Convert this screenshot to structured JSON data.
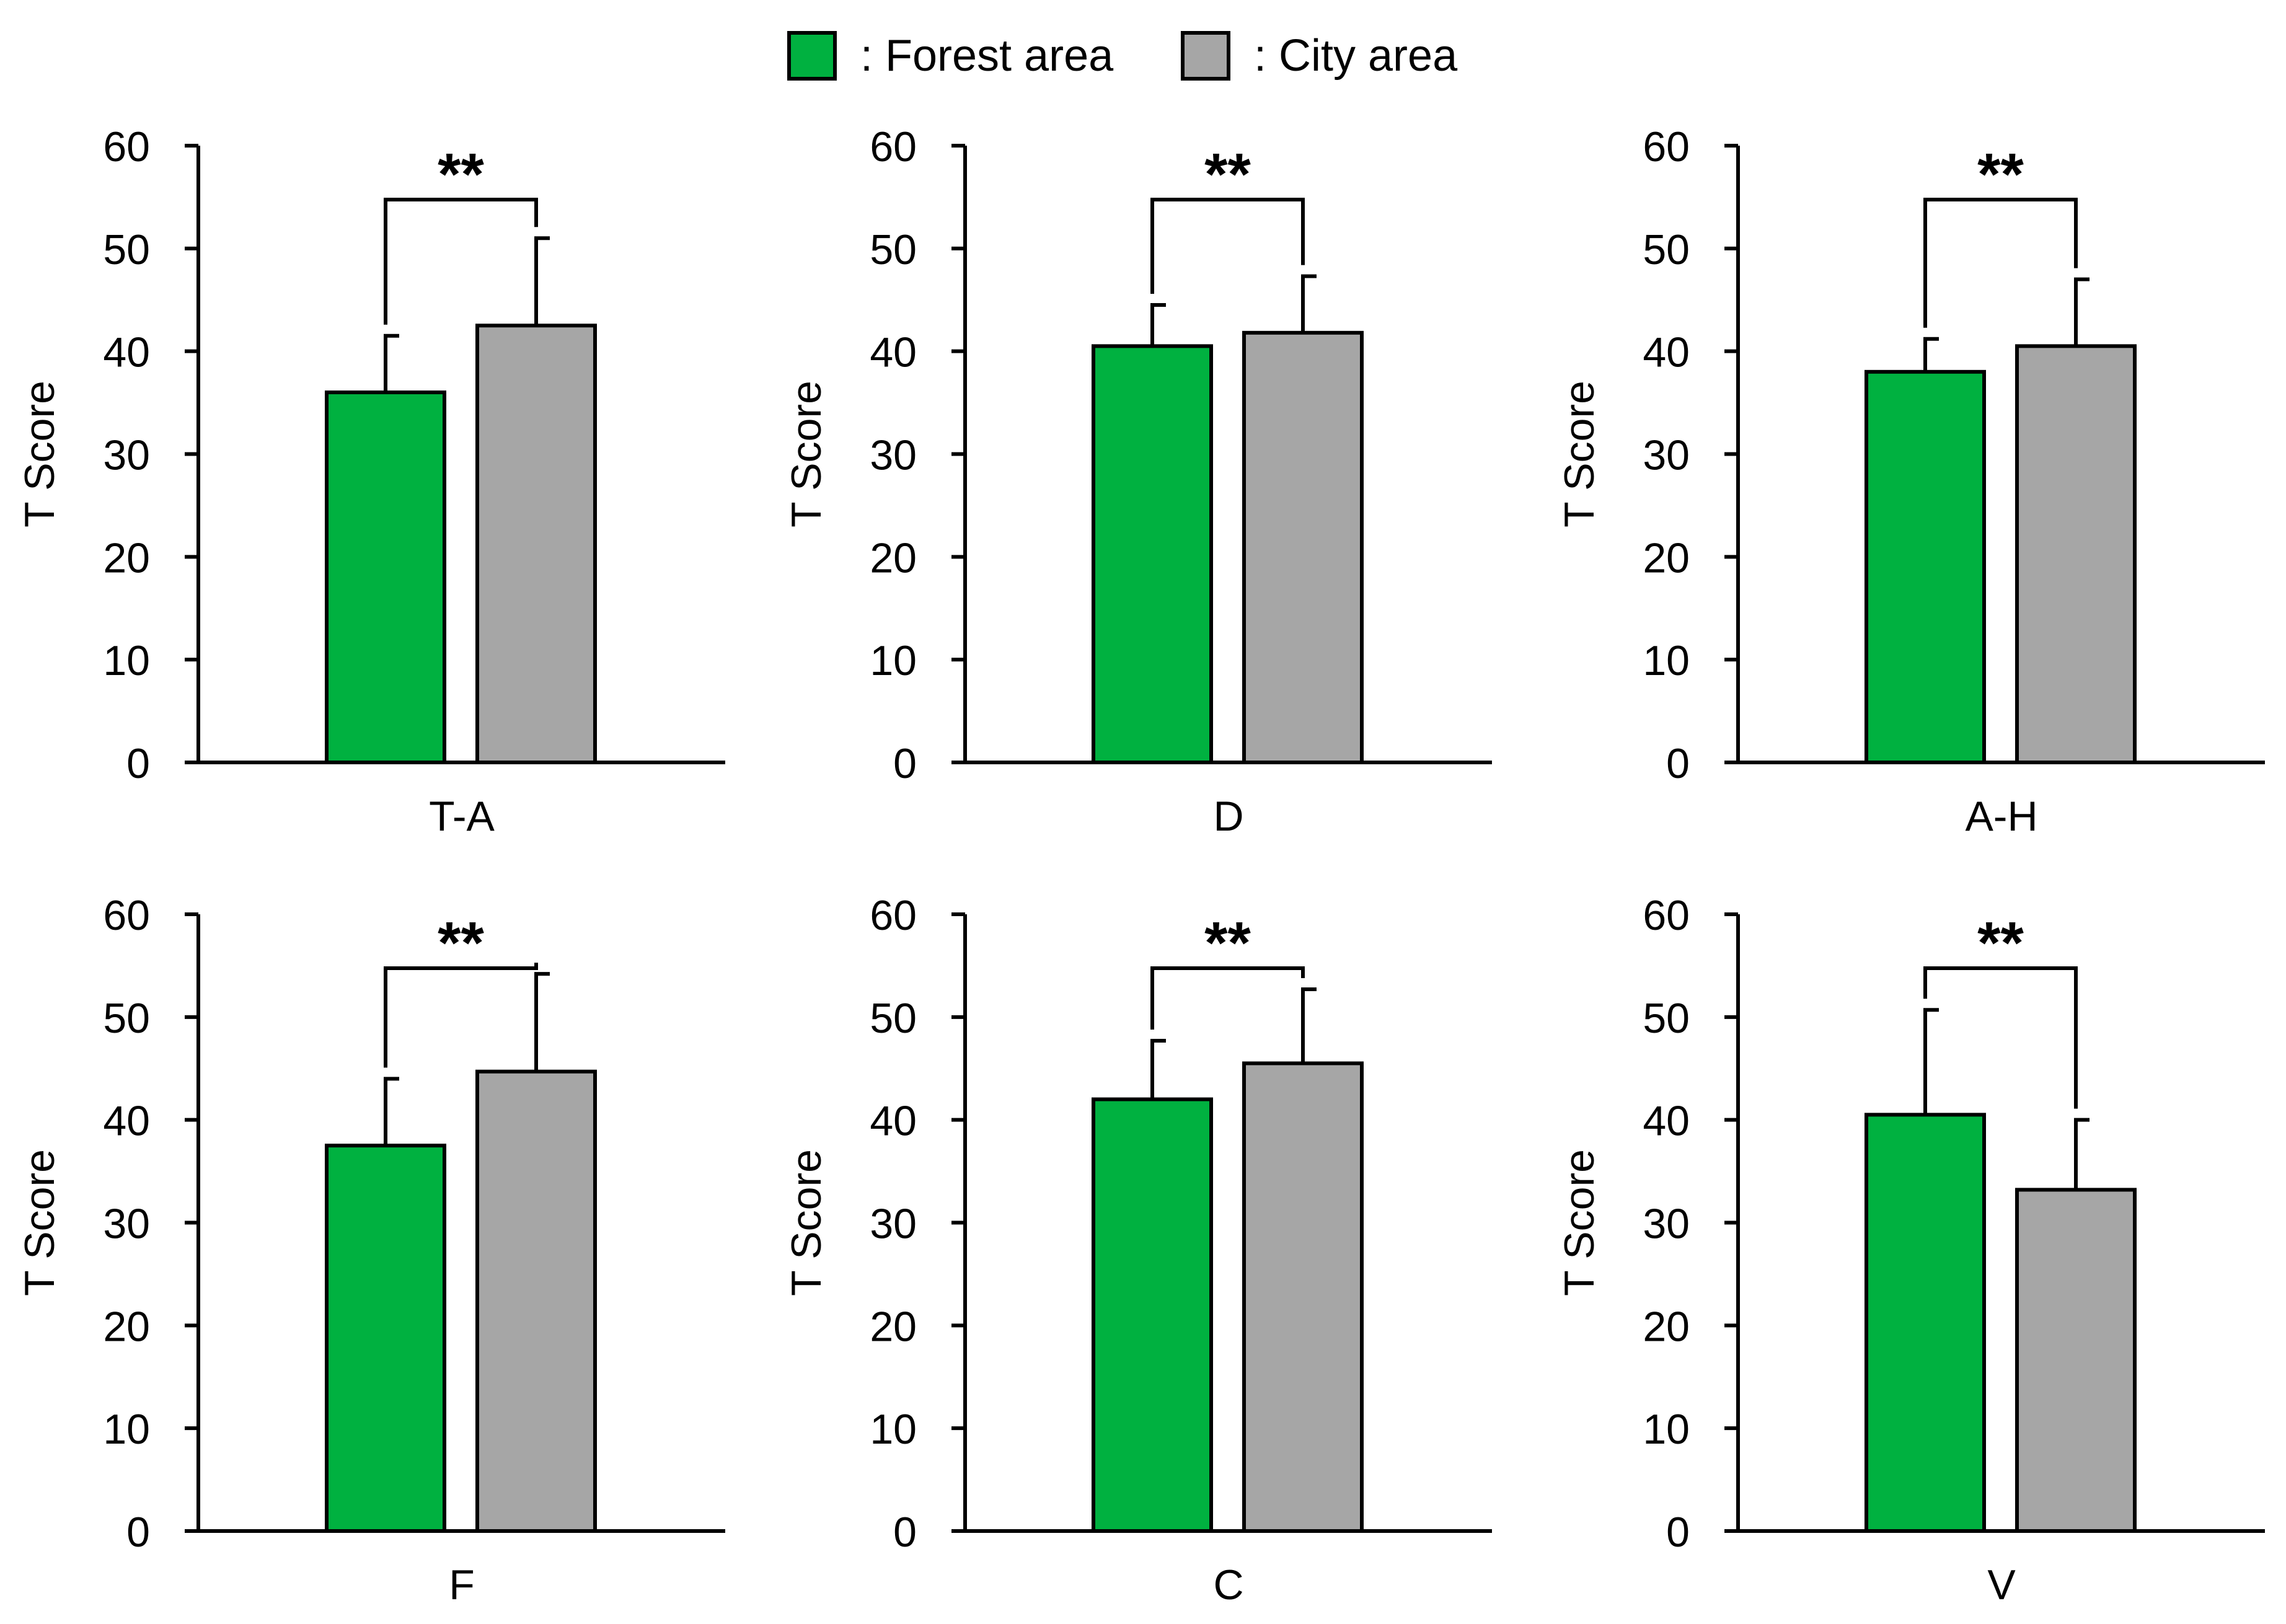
{
  "legend": {
    "forest_label": ": Forest area",
    "city_label": ": City area"
  },
  "colors": {
    "forest": "#00b140",
    "city": "#a6a6a6",
    "axis": "#000000"
  },
  "chart_data": [
    {
      "type": "bar",
      "title": "",
      "xlabel": "T-A",
      "ylabel": "T Score",
      "ylim": [
        0,
        60
      ],
      "yticks": [
        "0",
        "10",
        "20",
        "30",
        "40",
        "50",
        "60"
      ],
      "series": [
        {
          "name": "Forest area",
          "value": 36.0,
          "error": 5.5
        },
        {
          "name": "City area",
          "value": 42.5,
          "error": 8.5
        }
      ],
      "significance": "**"
    },
    {
      "type": "bar",
      "title": "",
      "xlabel": "D",
      "ylabel": "T Score",
      "ylim": [
        0,
        60
      ],
      "yticks": [
        "0",
        "10",
        "20",
        "30",
        "40",
        "50",
        "60"
      ],
      "series": [
        {
          "name": "Forest area",
          "value": 40.5,
          "error": 4.0
        },
        {
          "name": "City area",
          "value": 41.8,
          "error": 5.5
        }
      ],
      "significance": "**"
    },
    {
      "type": "bar",
      "title": "",
      "xlabel": "A-H",
      "ylabel": "T Score",
      "ylim": [
        0,
        60
      ],
      "yticks": [
        "0",
        "10",
        "20",
        "30",
        "40",
        "50",
        "60"
      ],
      "series": [
        {
          "name": "Forest area",
          "value": 38.0,
          "error": 3.2
        },
        {
          "name": "City area",
          "value": 40.5,
          "error": 6.5
        }
      ],
      "significance": "**"
    },
    {
      "type": "bar",
      "title": "",
      "xlabel": "F",
      "ylabel": "T Score",
      "ylim": [
        0,
        60
      ],
      "yticks": [
        "0",
        "10",
        "20",
        "30",
        "40",
        "50",
        "60"
      ],
      "series": [
        {
          "name": "Forest area",
          "value": 37.5,
          "error": 6.5
        },
        {
          "name": "City area",
          "value": 44.7,
          "error": 9.5
        }
      ],
      "significance": "**"
    },
    {
      "type": "bar",
      "title": "",
      "xlabel": "C",
      "ylabel": "T Score",
      "ylim": [
        0,
        60
      ],
      "yticks": [
        "0",
        "10",
        "20",
        "30",
        "40",
        "50",
        "60"
      ],
      "series": [
        {
          "name": "Forest area",
          "value": 42.0,
          "error": 5.7
        },
        {
          "name": "City area",
          "value": 45.5,
          "error": 7.2
        }
      ],
      "significance": "**"
    },
    {
      "type": "bar",
      "title": "",
      "xlabel": "V",
      "ylabel": "T Score",
      "ylim": [
        0,
        60
      ],
      "yticks": [
        "0",
        "10",
        "20",
        "30",
        "40",
        "50",
        "60"
      ],
      "series": [
        {
          "name": "Forest area",
          "value": 40.5,
          "error": 10.2
        },
        {
          "name": "City area",
          "value": 33.2,
          "error": 6.8
        }
      ],
      "significance": "**"
    }
  ]
}
